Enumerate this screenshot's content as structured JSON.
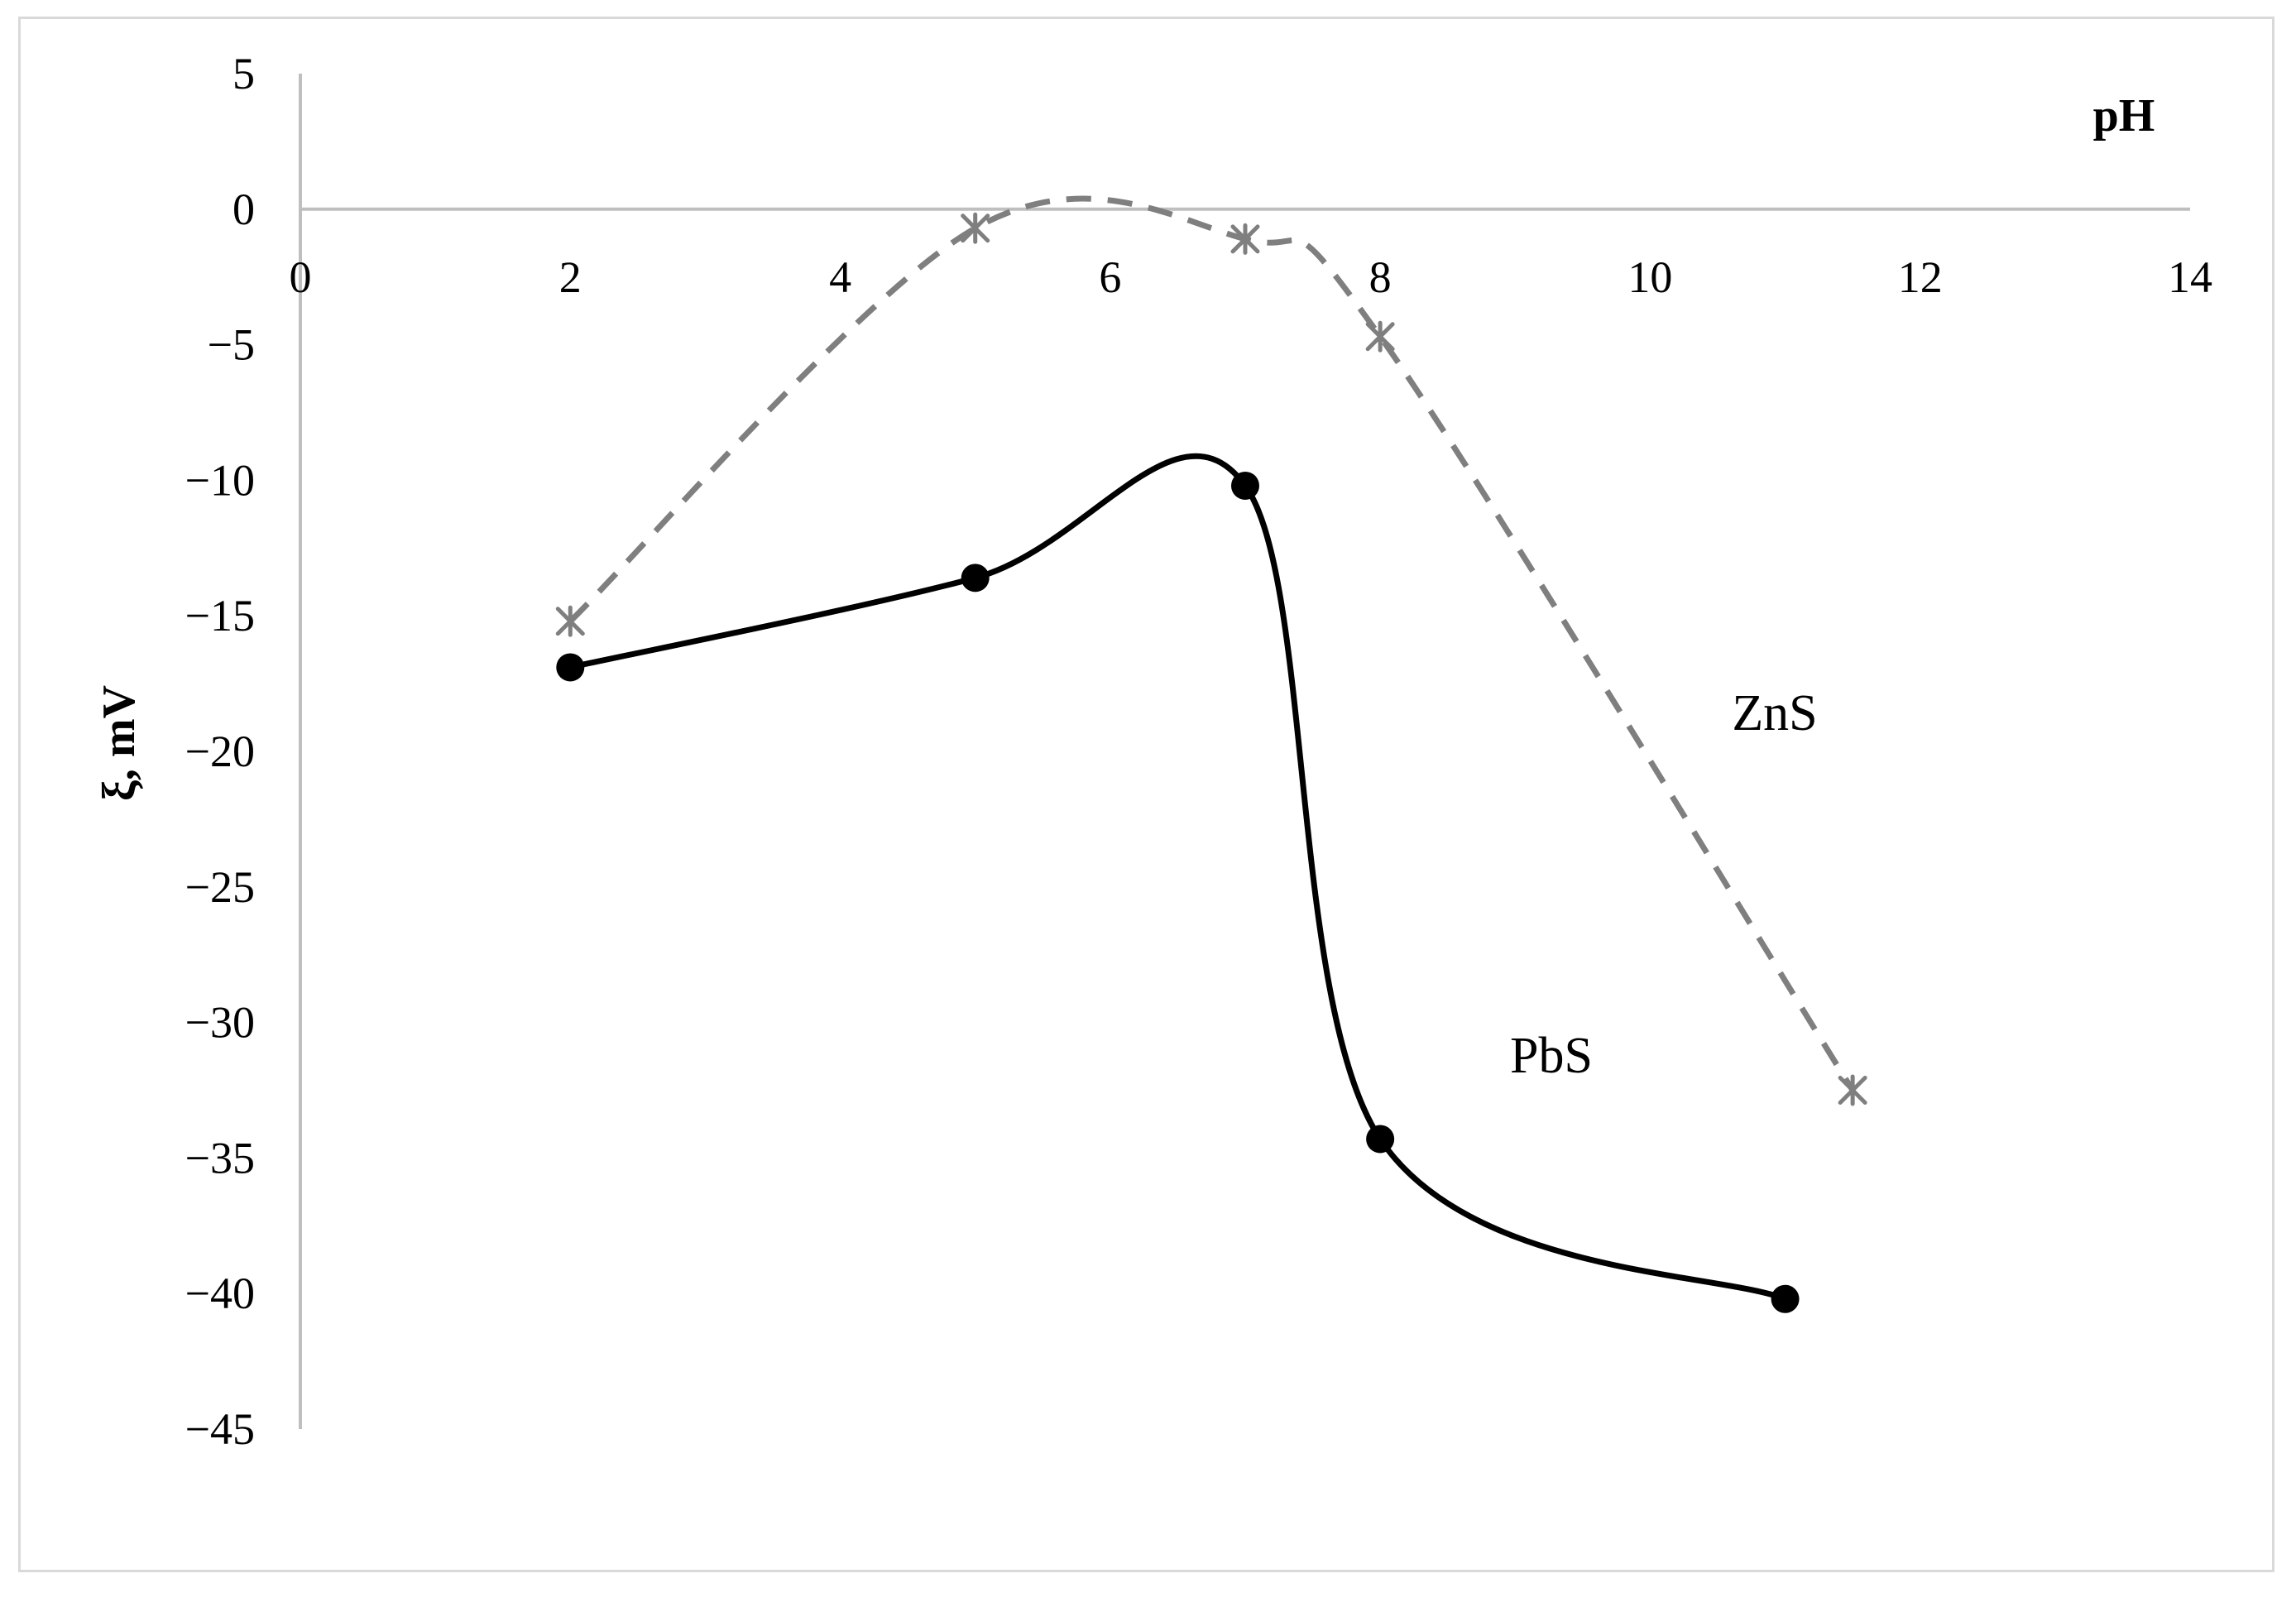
{
  "chart_data": {
    "type": "line",
    "title": "",
    "xlabel": "pH",
    "ylabel": "ξ, mV",
    "xlim": [
      0,
      14
    ],
    "ylim": [
      -45,
      5
    ],
    "x_ticks": [
      "0",
      "2",
      "4",
      "6",
      "8",
      "10",
      "12",
      "14"
    ],
    "y_ticks": [
      "5",
      "0",
      "−5",
      "−10",
      "−15",
      "−20",
      "−25",
      "−30",
      "−35",
      "−40",
      "−45"
    ],
    "grid": false,
    "legend": "none (series labelled inline)",
    "series": [
      {
        "name": "ZnS",
        "style": "dashed",
        "marker": "asterisk",
        "color": "#7f7f7f",
        "x": [
          2,
          5,
          7,
          8,
          11.5
        ],
        "y": [
          -15.2,
          -0.7,
          -1.1,
          -4.7,
          -32.5
        ]
      },
      {
        "name": "PbS",
        "style": "solid",
        "marker": "circle",
        "color": "#000000",
        "x": [
          2,
          5,
          7,
          8,
          11
        ],
        "y": [
          -16.9,
          -13.6,
          -10.2,
          -34.3,
          -40.2
        ]
      }
    ]
  }
}
